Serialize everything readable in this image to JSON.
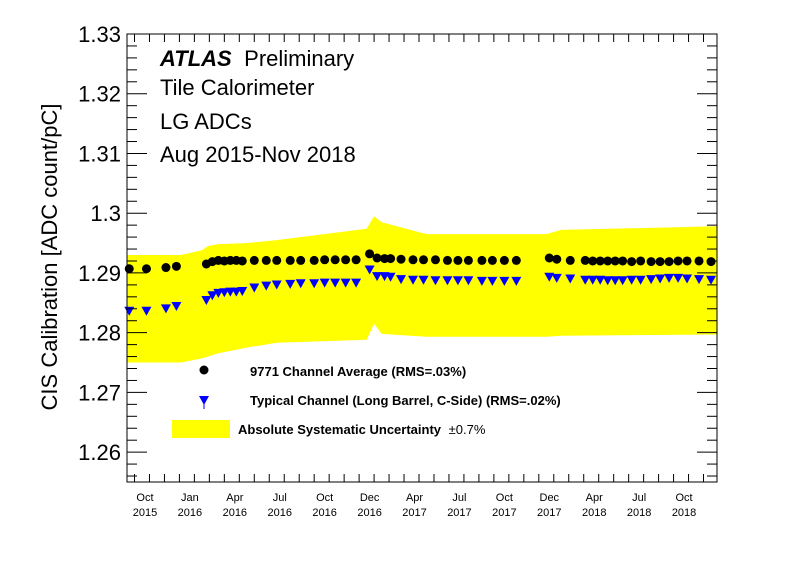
{
  "header": {
    "experiment": "ATLAS",
    "status": "Preliminary",
    "detector": "Tile Calorimeter",
    "adc_type": "LG ADCs",
    "period": "Aug 2015-Nov 2018"
  },
  "chart_data": {
    "type": "scatter",
    "title": "",
    "ylabel": "CIS Calibration [ADC count/pC]",
    "xlabel": "",
    "ylim": [
      1.255,
      1.33
    ],
    "xlim": [
      0,
      39.4
    ],
    "yticks": [
      "1.26",
      "1.27",
      "1.28",
      "1.29",
      "1.3",
      "1.31",
      "1.32",
      "1.33"
    ],
    "xticks": [
      {
        "x": 1,
        "month": "Oct",
        "year": "2015"
      },
      {
        "x": 4,
        "month": "Jan",
        "year": "2016"
      },
      {
        "x": 7,
        "month": "Apr",
        "year": "2016"
      },
      {
        "x": 10,
        "month": "Jul",
        "year": "2016"
      },
      {
        "x": 13,
        "month": "Oct",
        "year": "2016"
      },
      {
        "x": 16,
        "month": "Dec",
        "year": "2016"
      },
      {
        "x": 19,
        "month": "Apr",
        "year": "2017"
      },
      {
        "x": 22,
        "month": "Jul",
        "year": "2017"
      },
      {
        "x": 25,
        "month": "Oct",
        "year": "2017"
      },
      {
        "x": 28,
        "month": "Dec",
        "year": "2017"
      },
      {
        "x": 31,
        "month": "Apr",
        "year": "2018"
      },
      {
        "x": 34,
        "month": "Jul",
        "year": "2018"
      },
      {
        "x": 37,
        "month": "Oct",
        "year": "2018"
      }
    ],
    "series": [
      {
        "name": "9771 Channel Average (RMS=.03%)",
        "marker": "circle",
        "color": "#000000",
        "x": [
          0.15,
          1.3,
          2.6,
          3.3,
          5.3,
          5.7,
          6.1,
          6.5,
          6.9,
          7.3,
          7.7,
          8.5,
          9.3,
          10.0,
          10.9,
          11.6,
          12.5,
          13.2,
          13.9,
          14.6,
          15.3,
          16.2,
          16.7,
          17.2,
          17.6,
          18.3,
          19.1,
          19.8,
          20.6,
          21.4,
          22.1,
          22.8,
          23.7,
          24.4,
          25.2,
          26.0,
          28.2,
          28.7,
          29.6,
          30.6,
          31.1,
          31.6,
          32.1,
          32.6,
          33.1,
          33.7,
          34.3,
          35.0,
          35.6,
          36.2,
          36.8,
          37.4,
          38.2,
          39.0
        ]
      },
      {
        "name": "Typical Channel (Long Barrel, C-Side) (RMS=.02%)",
        "marker": "triangle-down",
        "color": "#0000ff",
        "x": [
          0.15,
          1.3,
          2.6,
          3.3,
          5.3,
          5.7,
          6.1,
          6.5,
          6.9,
          7.3,
          7.7,
          8.5,
          9.3,
          10.0,
          10.9,
          11.6,
          12.5,
          13.2,
          13.9,
          14.6,
          15.3,
          16.2,
          16.7,
          17.2,
          17.6,
          18.3,
          19.1,
          19.8,
          20.6,
          21.4,
          22.1,
          22.8,
          23.7,
          24.4,
          25.2,
          26.0,
          28.2,
          28.7,
          29.6,
          30.6,
          31.1,
          31.6,
          32.1,
          32.6,
          33.1,
          33.7,
          34.3,
          35.0,
          35.6,
          36.2,
          36.8,
          37.4,
          38.2,
          39.0
        ]
      }
    ],
    "avg_y": [
      1.2907,
      1.2907,
      1.2909,
      1.2911,
      1.2915,
      1.2919,
      1.2921,
      1.292,
      1.2921,
      1.2921,
      1.292,
      1.2921,
      1.2921,
      1.2921,
      1.2921,
      1.2921,
      1.2921,
      1.2922,
      1.2922,
      1.2922,
      1.2922,
      1.2932,
      1.2925,
      1.2924,
      1.2924,
      1.2923,
      1.2922,
      1.2922,
      1.2922,
      1.2921,
      1.2921,
      1.2921,
      1.2921,
      1.2921,
      1.2921,
      1.2921,
      1.2925,
      1.2923,
      1.2921,
      1.2921,
      1.292,
      1.292,
      1.292,
      1.292,
      1.292,
      1.2919,
      1.292,
      1.2919,
      1.2919,
      1.2919,
      1.292,
      1.292,
      1.292,
      1.2919
    ],
    "typ_y": [
      1.2835,
      1.2835,
      1.2839,
      1.2843,
      1.2853,
      1.2861,
      1.2865,
      1.2866,
      1.2867,
      1.2867,
      1.2868,
      1.2874,
      1.2877,
      1.2879,
      1.288,
      1.2881,
      1.2881,
      1.2882,
      1.2882,
      1.2882,
      1.2882,
      1.2904,
      1.2893,
      1.2893,
      1.2892,
      1.2888,
      1.2887,
      1.2887,
      1.2886,
      1.2886,
      1.2886,
      1.2886,
      1.2885,
      1.2885,
      1.2885,
      1.2885,
      1.2892,
      1.289,
      1.2889,
      1.2887,
      1.2887,
      1.2887,
      1.2886,
      1.2886,
      1.2886,
      1.2887,
      1.2887,
      1.2888,
      1.2889,
      1.289,
      1.289,
      1.2889,
      1.2888,
      1.2887
    ],
    "band": {
      "name": "Absolute Systematic Uncertainty",
      "symbol": "±0.7%",
      "color": "#ffff00",
      "x": [
        0.0,
        3.6,
        5.0,
        5.4,
        6.0,
        8.0,
        10.0,
        16.0,
        16.5,
        17.0,
        20.0,
        28.0,
        29.0,
        39.4
      ],
      "lo": [
        1.275,
        1.275,
        1.2757,
        1.276,
        1.2765,
        1.2775,
        1.2783,
        1.2788,
        1.2815,
        1.2798,
        1.2793,
        1.2793,
        1.2795,
        1.2797
      ],
      "hi": [
        1.293,
        1.293,
        1.2938,
        1.2945,
        1.2948,
        1.295,
        1.2955,
        1.2974,
        1.2995,
        1.2985,
        1.2965,
        1.2965,
        1.2972,
        1.2978
      ]
    }
  }
}
